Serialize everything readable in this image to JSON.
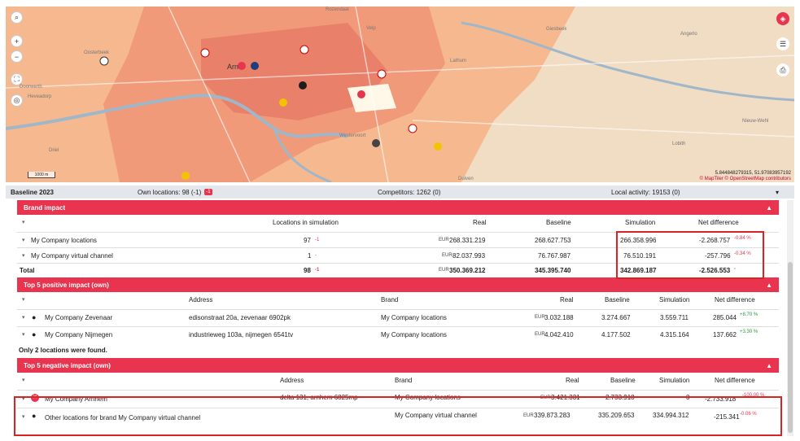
{
  "map": {
    "place_labels": [
      "Rozendaal",
      "Oosterbeek",
      "Arn",
      "Velp",
      "Lathum",
      "Giesbeek",
      "Angerlo",
      "Doorwerth",
      "Heveadorp",
      "Driel",
      "Westervoort",
      "Duiven",
      "Lobith",
      "Nieuw-Wehl"
    ],
    "scale": "1000 m",
    "coords": "5.844848279315, 51.97083957192",
    "attribution": "© MapTiler © OpenStreetMap contributors",
    "zoom_in": "+",
    "zoom_out": "−",
    "search_icon": "search-icon",
    "fullscreen_icon": "fullscreen-icon",
    "locate_icon": "locate-icon",
    "layers_icon": "layers-icon",
    "list_icon": "list-icon",
    "print_icon": "print-icon",
    "accent": "#e8344e"
  },
  "status": {
    "title": "Baseline 2023",
    "own": "Own locations: 98 (-1)",
    "own_badge": "-1",
    "competitors": "Competitors: 1262 (0)",
    "local": "Local activity: 19153 (0)",
    "chevron": "▾"
  },
  "brand": {
    "title": "Brand impact",
    "cols": {
      "loc": "Locations in simulation",
      "real": "Real",
      "base": "Baseline",
      "sim": "Simulation",
      "net": "Net difference"
    },
    "rows": [
      {
        "name": "My Company locations",
        "loc": "97",
        "locd": "-1",
        "cur": "EUR",
        "real": "268.331.219",
        "base": "268.627.753",
        "sim": "266.358.996",
        "net": "-2.268.757",
        "pct": "-0.84 %"
      },
      {
        "name": "My Company virtual channel",
        "loc": "1",
        "locd": "-",
        "cur": "EUR",
        "real": "82.037.993",
        "base": "76.767.987",
        "sim": "76.510.191",
        "net": "-257.796",
        "pct": "-0.34 %"
      }
    ],
    "total": {
      "label": "Total",
      "loc": "98",
      "locd": "-1",
      "cur": "EUR",
      "real": "350.369.212",
      "base": "345.395.740",
      "sim": "342.869.187",
      "net": "-2.526.553",
      "pct": "-"
    }
  },
  "pos": {
    "title": "Top 5 positive impact (own)",
    "cols": {
      "addr": "Address",
      "brand": "Brand",
      "real": "Real",
      "base": "Baseline",
      "sim": "Simulation",
      "net": "Net difference"
    },
    "rows": [
      {
        "name": "My Company Zevenaar",
        "addr": "edisonstraat 20a, zevenaar 6902pk",
        "brand": "My Company locations",
        "cur": "EUR",
        "real": "3.032.188",
        "base": "3.274.667",
        "sim": "3.559.711",
        "net": "285.044",
        "pct": "+8.70 %"
      },
      {
        "name": "My Company Nijmegen",
        "addr": "industrieweg 103a, nijmegen 6541tv",
        "brand": "My Company locations",
        "cur": "EUR",
        "real": "4.042.410",
        "base": "4.177.502",
        "sim": "4.315.164",
        "net": "137.662",
        "pct": "+3.30 %"
      }
    ],
    "note": "Only 2 locations were found."
  },
  "neg": {
    "title": "Top 5 negative impact (own)",
    "cols": {
      "addr": "Address",
      "brand": "Brand",
      "real": "Real",
      "base": "Baseline",
      "sim": "Simulation",
      "net": "Net difference"
    },
    "rows": [
      {
        "name": "My Company Arnhem",
        "addr": "delta 131, arnhem 6825mp",
        "brand": "My Company locations",
        "cur": "EUR",
        "real": "3.421.331",
        "base": "2.733.918",
        "sim": "0",
        "net": "-2.733.918",
        "pct": "-100.00 %"
      },
      {
        "name": "Other locations for brand My Company virtual channel",
        "addr": "",
        "brand": "My Company virtual channel",
        "cur": "EUR",
        "real": "339.873.283",
        "base": "335.209.653",
        "sim": "334.994.312",
        "net": "-215.341",
        "pct": "-0.06 %"
      }
    ]
  },
  "collapse_icon": "▲",
  "expand_icon": "▾"
}
